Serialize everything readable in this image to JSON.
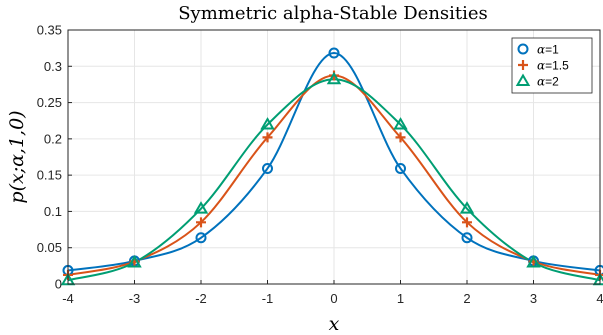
{
  "chart_data": {
    "type": "line",
    "title": "Symmetric alpha-Stable Densities",
    "xlabel": "x",
    "ylabel": "p(x;α,1,0)",
    "xlim": [
      -4,
      4
    ],
    "ylim": [
      0,
      0.35
    ],
    "xticks": [
      "-4",
      "-3",
      "-2",
      "-1",
      "0",
      "1",
      "2",
      "3",
      "4"
    ],
    "yticks": [
      "0",
      "0.05",
      "0.1",
      "0.15",
      "0.2",
      "0.25",
      "0.3",
      "0.35"
    ],
    "grid": true,
    "legend_position": "top-right",
    "series": [
      {
        "name_symbol": "α",
        "name_value": "=1",
        "color": "#0072BD",
        "marker": "circle",
        "x": [
          -4,
          -3,
          -2,
          -1,
          0,
          1,
          2,
          3,
          4
        ],
        "y": [
          0.0187,
          0.0318,
          0.0637,
          0.1592,
          0.3183,
          0.1592,
          0.0637,
          0.0318,
          0.0187
        ]
      },
      {
        "name_symbol": "α",
        "name_value": "=1.5",
        "color": "#D95319",
        "marker": "plus",
        "x": [
          -4,
          -3,
          -2,
          -1,
          0,
          1,
          2,
          3,
          4
        ],
        "y": [
          0.0125,
          0.031,
          0.085,
          0.202,
          0.2873,
          0.202,
          0.085,
          0.031,
          0.0125
        ]
      },
      {
        "name_symbol": "α",
        "name_value": "=2",
        "color": "#009E73",
        "marker": "triangle",
        "x": [
          -4,
          -3,
          -2,
          -1,
          0,
          1,
          2,
          3,
          4
        ],
        "y": [
          0.0052,
          0.0297,
          0.1038,
          0.2197,
          0.2821,
          0.2197,
          0.1038,
          0.0297,
          0.0052
        ]
      }
    ]
  }
}
